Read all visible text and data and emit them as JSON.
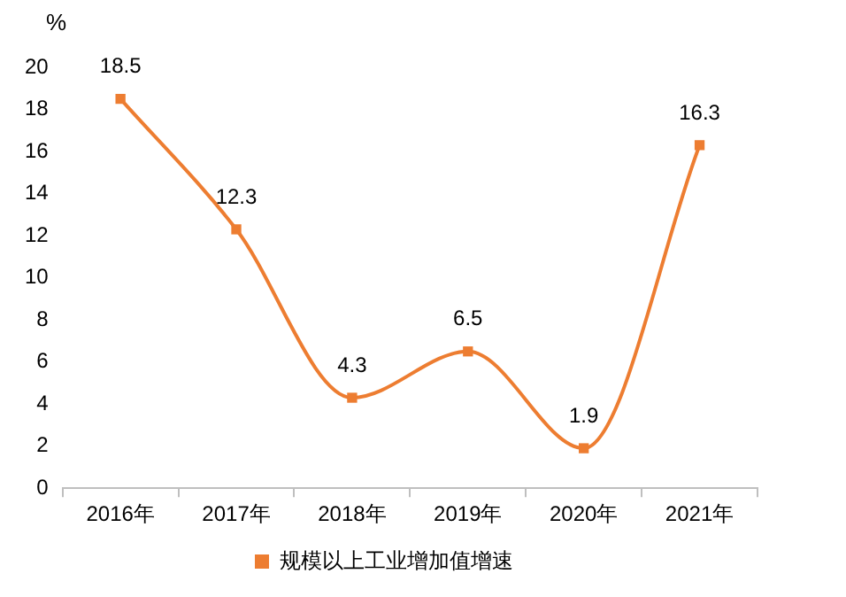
{
  "chart_data": {
    "type": "line",
    "ylabel": "%",
    "categories": [
      "2016年",
      "2017年",
      "2018年",
      "2019年",
      "2020年",
      "2021年"
    ],
    "series": [
      {
        "name": "规模以上工业增加值增速",
        "color": "#ed7d31",
        "values": [
          18.5,
          12.3,
          4.3,
          6.5,
          1.9,
          16.3
        ]
      }
    ],
    "ylim": [
      0,
      20
    ],
    "yticks": [
      0,
      2,
      4,
      6,
      8,
      10,
      12,
      14,
      16,
      18,
      20
    ],
    "grid": false,
    "legend": "bottom",
    "marker": "square",
    "line_style": "solid",
    "data_labels": true
  }
}
